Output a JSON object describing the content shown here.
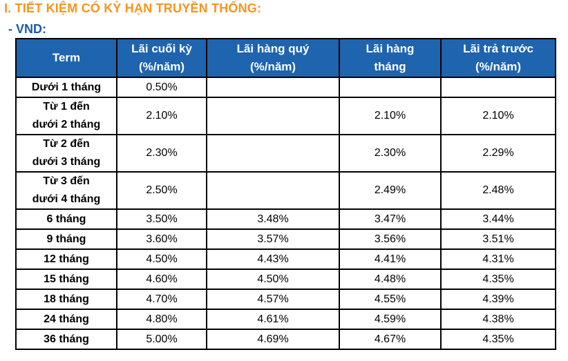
{
  "heading": {
    "section": "I. TIẾT KIỆM CÓ KỲ HẠN TRUYỀN THỐNG:",
    "currency": "- VND:"
  },
  "table": {
    "headers": [
      {
        "line1": "Term",
        "line2": ""
      },
      {
        "line1": "Lãi cuối kỳ",
        "line2": "(%/năm)"
      },
      {
        "line1": "Lãi hàng quý",
        "line2": "(%/năm)"
      },
      {
        "line1": "Lãi hàng",
        "line2": "tháng"
      },
      {
        "line1": "Lãi trả trước",
        "line2": "(%/năm)"
      }
    ],
    "rows": [
      {
        "term1": "Dưới 1 tháng",
        "term2": "",
        "end": "0.50%",
        "quarterly": "",
        "monthly": "",
        "upfront": ""
      },
      {
        "term1": "Từ 1 đến",
        "term2": "dưới 2 tháng",
        "end": "2.10%",
        "quarterly": "",
        "monthly": "2.10%",
        "upfront": "2.10%"
      },
      {
        "term1": "Từ 2 đến",
        "term2": "dưới 3 tháng",
        "end": "2.30%",
        "quarterly": "",
        "monthly": "2.30%",
        "upfront": "2.29%"
      },
      {
        "term1": "Từ 3 đến",
        "term2": "dưới 4 tháng",
        "end": "2.50%",
        "quarterly": "",
        "monthly": "2.49%",
        "upfront": "2.48%"
      },
      {
        "term1": "6 tháng",
        "term2": "",
        "end": "3.50%",
        "quarterly": "3.48%",
        "monthly": "3.47%",
        "upfront": "3.44%"
      },
      {
        "term1": "9 tháng",
        "term2": "",
        "end": "3.60%",
        "quarterly": "3.57%",
        "monthly": "3.56%",
        "upfront": "3.51%"
      },
      {
        "term1": "12 tháng",
        "term2": "",
        "end": "4.50%",
        "quarterly": "4.43%",
        "monthly": "4.41%",
        "upfront": "4.31%"
      },
      {
        "term1": "15 tháng",
        "term2": "",
        "end": "4.60%",
        "quarterly": "4.50%",
        "monthly": "4.48%",
        "upfront": "4.35%"
      },
      {
        "term1": "18 tháng",
        "term2": "",
        "end": "4.70%",
        "quarterly": "4.57%",
        "monthly": "4.55%",
        "upfront": "4.39%"
      },
      {
        "term1": "24 tháng",
        "term2": "",
        "end": "4.80%",
        "quarterly": "4.61%",
        "monthly": "4.59%",
        "upfront": "4.38%"
      },
      {
        "term1": "36 tháng",
        "term2": "",
        "end": "5.00%",
        "quarterly": "4.69%",
        "monthly": "4.67%",
        "upfront": "4.35%"
      }
    ]
  },
  "colors": {
    "section_title": "#f7941d",
    "currency_title": "#1a5aa8",
    "header_background": "#1f64ae",
    "header_text": "#ffffff",
    "border": "#000000"
  }
}
